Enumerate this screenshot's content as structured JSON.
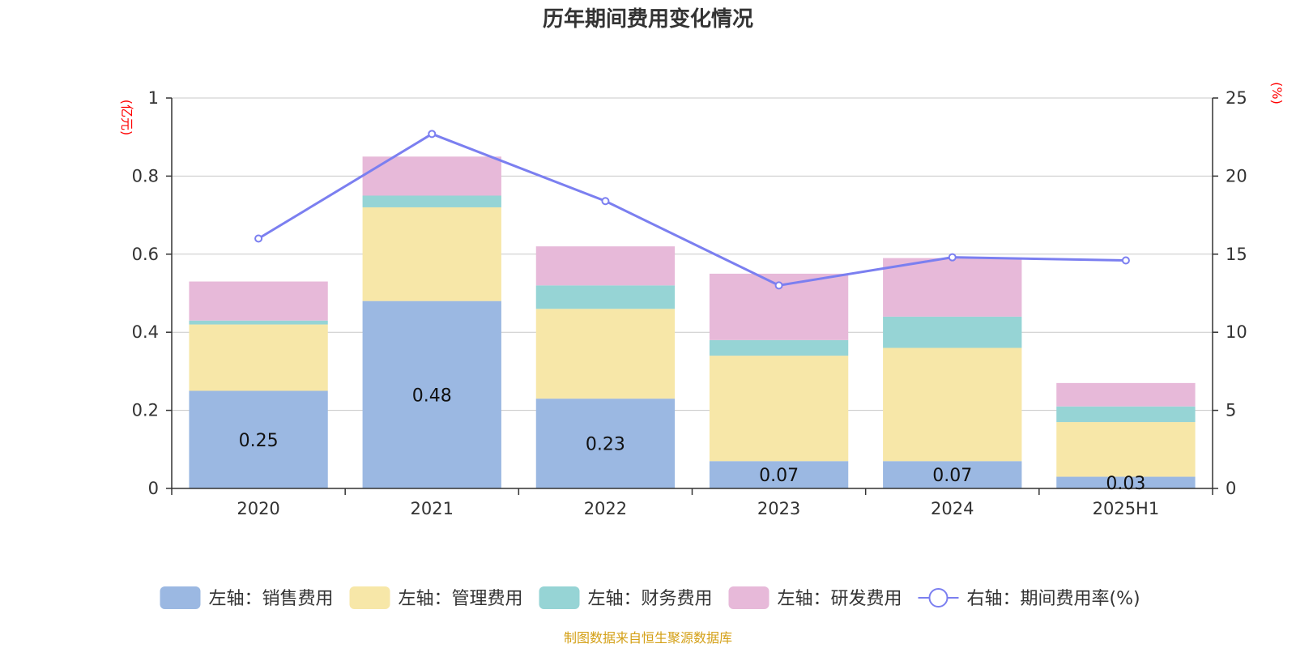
{
  "chart_data": {
    "type": "bar",
    "title": "历年期间费用变化情况",
    "left_unit": "(亿元)",
    "right_unit": "(%)",
    "categories": [
      "2020",
      "2021",
      "2022",
      "2023",
      "2024",
      "2025H1"
    ],
    "left_axis": {
      "ticks": [
        "0",
        "0.2",
        "0.4",
        "0.6",
        "0.8",
        "1"
      ],
      "ylim": [
        0,
        1
      ]
    },
    "right_axis": {
      "ticks": [
        "0",
        "5",
        "10",
        "15",
        "20",
        "25"
      ],
      "ylim": [
        0,
        25
      ]
    },
    "stacked": true,
    "grid": true,
    "legend_position": "bottom",
    "series": [
      {
        "name": "左轴：销售费用",
        "type": "bar",
        "axis": "left",
        "color": "#9bb8e2",
        "values": [
          0.25,
          0.48,
          0.23,
          0.07,
          0.07,
          0.03
        ],
        "labels": [
          "0.25",
          "0.48",
          "0.23",
          "0.07",
          "0.07",
          "0.03"
        ]
      },
      {
        "name": "左轴：管理费用",
        "type": "bar",
        "axis": "left",
        "color": "#f7e7a8",
        "values": [
          0.17,
          0.24,
          0.23,
          0.27,
          0.29,
          0.14
        ]
      },
      {
        "name": "左轴：财务费用",
        "type": "bar",
        "axis": "left",
        "color": "#96d4d5",
        "values": [
          0.01,
          0.03,
          0.06,
          0.04,
          0.08,
          0.04
        ]
      },
      {
        "name": "左轴：研发费用",
        "type": "bar",
        "axis": "left",
        "color": "#e7b9d9",
        "values": [
          0.1,
          0.1,
          0.1,
          0.17,
          0.15,
          0.06
        ]
      },
      {
        "name": "右轴：期间费用率(%)",
        "type": "line",
        "axis": "right",
        "color": "#7b7ff0",
        "values": [
          16.0,
          22.7,
          18.4,
          13.0,
          14.8,
          14.6
        ]
      }
    ]
  },
  "footer": {
    "source": "制图数据来自恒生聚源数据库"
  }
}
